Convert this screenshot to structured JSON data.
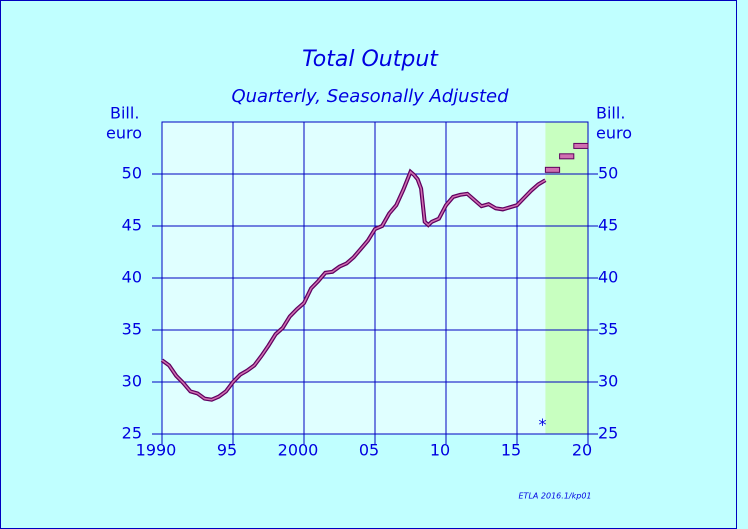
{
  "chart_data": {
    "type": "line",
    "title": "Total Output",
    "subtitle": "Quarterly, Seasonally Adjusted",
    "y_label": [
      "Bill.",
      "euro"
    ],
    "y2_label": [
      "Bill.",
      "euro"
    ],
    "xlim": [
      1990,
      2020
    ],
    "xticks": [
      {
        "value": 1990,
        "label": "1990"
      },
      {
        "value": 1995,
        "label": "95"
      },
      {
        "value": 2000,
        "label": "2000"
      },
      {
        "value": 2005,
        "label": "05"
      },
      {
        "value": 2010,
        "label": "10"
      },
      {
        "value": 2015,
        "label": "15"
      },
      {
        "value": 2020,
        "label": "20"
      }
    ],
    "ylim": [
      25,
      55
    ],
    "yticks": [
      25,
      30,
      35,
      40,
      45,
      50
    ],
    "grid": true,
    "series": [
      {
        "name": "Total Output",
        "color": "#d070b0",
        "x": [
          1990,
          1990.5,
          1991,
          1991.5,
          1992,
          1992.5,
          1993,
          1993.5,
          1994,
          1994.5,
          1995,
          1995.5,
          1996,
          1996.5,
          1997,
          1997.5,
          1998,
          1998.5,
          1999,
          1999.5,
          2000,
          2000.5,
          2001,
          2001.5,
          2002,
          2002.5,
          2003,
          2003.5,
          2004,
          2004.5,
          2005,
          2005.5,
          2006,
          2006.5,
          2007,
          2007.5,
          2007.75,
          2008,
          2008.25,
          2008.5,
          2008.75,
          2009,
          2009.5,
          2010,
          2010.5,
          2011,
          2011.5,
          2012,
          2012.5,
          2013,
          2013.5,
          2014,
          2014.5,
          2015,
          2015.5,
          2016,
          2016.5,
          2017
        ],
        "values": [
          32.1,
          31.6,
          30.6,
          29.9,
          29.1,
          28.9,
          28.4,
          28.3,
          28.6,
          29.1,
          30.0,
          30.7,
          31.1,
          31.6,
          32.5,
          33.5,
          34.6,
          35.2,
          36.3,
          37.0,
          37.6,
          39.0,
          39.7,
          40.5,
          40.6,
          41.1,
          41.4,
          42.0,
          42.8,
          43.6,
          44.7,
          45.0,
          46.2,
          47.0,
          48.5,
          50.2,
          49.9,
          49.5,
          48.6,
          45.4,
          45.1,
          45.4,
          45.7,
          47.0,
          47.8,
          48.0,
          48.1,
          47.5,
          46.9,
          47.1,
          46.7,
          46.6,
          46.8,
          47.0,
          47.7,
          48.4,
          49.0,
          49.4
        ]
      }
    ],
    "forecast": {
      "x": [
        2017,
        2018,
        2019
      ],
      "values": [
        50.4,
        51.7,
        52.7
      ],
      "color": "#c8ffc0"
    },
    "annotations": [
      {
        "text": "*",
        "x": 2016.8,
        "y": 25.8
      }
    ],
    "footer": "ETLA 2016.1/kp01"
  }
}
